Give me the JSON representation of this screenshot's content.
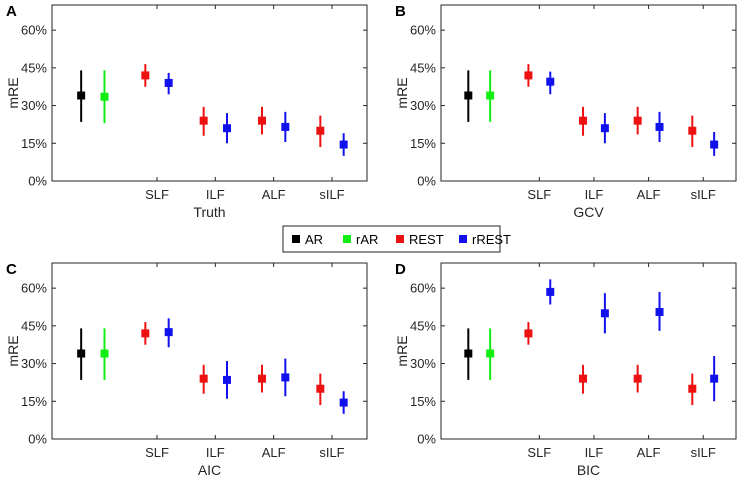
{
  "chart_data": [
    {
      "panel": "A",
      "type": "errorbar",
      "xlabel": "Truth",
      "ylabel": "mRE",
      "ylim": [
        0,
        0.7
      ],
      "yticks": [
        0,
        0.15,
        0.3,
        0.45,
        0.6
      ],
      "ytick_labels": [
        "0%",
        "15%",
        "30%",
        "45%",
        "60%"
      ],
      "categories": [
        "SLF",
        "ILF",
        "ALF",
        "sILF"
      ],
      "series": [
        {
          "name": "AR",
          "color": "#000000",
          "points": [
            {
              "x": -2.4,
              "mean": 0.34,
              "lo": 0.235,
              "hi": 0.44
            }
          ]
        },
        {
          "name": "rAR",
          "color": "#11ee11",
          "points": [
            {
              "x": -1.6,
              "mean": 0.335,
              "lo": 0.23,
              "hi": 0.44
            }
          ]
        },
        {
          "name": "REST",
          "color": "#ee1111",
          "points": [
            {
              "x": -0.2,
              "mean": 0.42,
              "lo": 0.375,
              "hi": 0.465
            },
            {
              "x": 1.8,
              "mean": 0.24,
              "lo": 0.18,
              "hi": 0.295
            },
            {
              "x": 3.8,
              "mean": 0.24,
              "lo": 0.185,
              "hi": 0.295
            },
            {
              "x": 5.8,
              "mean": 0.2,
              "lo": 0.135,
              "hi": 0.26
            }
          ]
        },
        {
          "name": "rREST",
          "color": "#1111ee",
          "points": [
            {
              "x": 0.6,
              "mean": 0.39,
              "lo": 0.345,
              "hi": 0.43
            },
            {
              "x": 2.6,
              "mean": 0.21,
              "lo": 0.15,
              "hi": 0.27
            },
            {
              "x": 4.6,
              "mean": 0.215,
              "lo": 0.155,
              "hi": 0.275
            },
            {
              "x": 6.6,
              "mean": 0.145,
              "lo": 0.1,
              "hi": 0.19
            }
          ]
        }
      ]
    },
    {
      "panel": "B",
      "type": "errorbar",
      "xlabel": "GCV",
      "ylabel": "mRE",
      "ylim": [
        0,
        0.7
      ],
      "yticks": [
        0,
        0.15,
        0.3,
        0.45,
        0.6
      ],
      "ytick_labels": [
        "0%",
        "15%",
        "30%",
        "45%",
        "60%"
      ],
      "categories": [
        "SLF",
        "ILF",
        "ALF",
        "sILF"
      ],
      "series": [
        {
          "name": "AR",
          "color": "#000000",
          "points": [
            {
              "x": -2.4,
              "mean": 0.34,
              "lo": 0.235,
              "hi": 0.44
            }
          ]
        },
        {
          "name": "rAR",
          "color": "#11ee11",
          "points": [
            {
              "x": -1.6,
              "mean": 0.34,
              "lo": 0.235,
              "hi": 0.44
            }
          ]
        },
        {
          "name": "REST",
          "color": "#ee1111",
          "points": [
            {
              "x": -0.2,
              "mean": 0.42,
              "lo": 0.375,
              "hi": 0.465
            },
            {
              "x": 1.8,
              "mean": 0.24,
              "lo": 0.18,
              "hi": 0.295
            },
            {
              "x": 3.8,
              "mean": 0.24,
              "lo": 0.185,
              "hi": 0.295
            },
            {
              "x": 5.8,
              "mean": 0.2,
              "lo": 0.135,
              "hi": 0.26
            }
          ]
        },
        {
          "name": "rREST",
          "color": "#1111ee",
          "points": [
            {
              "x": 0.6,
              "mean": 0.395,
              "lo": 0.345,
              "hi": 0.435
            },
            {
              "x": 2.6,
              "mean": 0.21,
              "lo": 0.15,
              "hi": 0.27
            },
            {
              "x": 4.6,
              "mean": 0.215,
              "lo": 0.155,
              "hi": 0.275
            },
            {
              "x": 6.6,
              "mean": 0.145,
              "lo": 0.1,
              "hi": 0.195
            }
          ]
        }
      ]
    },
    {
      "panel": "C",
      "type": "errorbar",
      "xlabel": "AIC",
      "ylabel": "mRE",
      "ylim": [
        0,
        0.7
      ],
      "yticks": [
        0,
        0.15,
        0.3,
        0.45,
        0.6
      ],
      "ytick_labels": [
        "0%",
        "15%",
        "30%",
        "45%",
        "60%"
      ],
      "categories": [
        "SLF",
        "ILF",
        "ALF",
        "sILF"
      ],
      "series": [
        {
          "name": "AR",
          "color": "#000000",
          "points": [
            {
              "x": -2.4,
              "mean": 0.34,
              "lo": 0.235,
              "hi": 0.44
            }
          ]
        },
        {
          "name": "rAR",
          "color": "#11ee11",
          "points": [
            {
              "x": -1.6,
              "mean": 0.34,
              "lo": 0.235,
              "hi": 0.44
            }
          ]
        },
        {
          "name": "REST",
          "color": "#ee1111",
          "points": [
            {
              "x": -0.2,
              "mean": 0.42,
              "lo": 0.375,
              "hi": 0.465
            },
            {
              "x": 1.8,
              "mean": 0.24,
              "lo": 0.18,
              "hi": 0.295
            },
            {
              "x": 3.8,
              "mean": 0.24,
              "lo": 0.185,
              "hi": 0.295
            },
            {
              "x": 5.8,
              "mean": 0.2,
              "lo": 0.135,
              "hi": 0.26
            }
          ]
        },
        {
          "name": "rREST",
          "color": "#1111ee",
          "points": [
            {
              "x": 0.6,
              "mean": 0.425,
              "lo": 0.365,
              "hi": 0.48
            },
            {
              "x": 2.6,
              "mean": 0.235,
              "lo": 0.16,
              "hi": 0.31
            },
            {
              "x": 4.6,
              "mean": 0.245,
              "lo": 0.17,
              "hi": 0.32
            },
            {
              "x": 6.6,
              "mean": 0.145,
              "lo": 0.1,
              "hi": 0.19
            }
          ]
        }
      ]
    },
    {
      "panel": "D",
      "type": "errorbar",
      "xlabel": "BIC",
      "ylabel": "mRE",
      "ylim": [
        0,
        0.7
      ],
      "yticks": [
        0,
        0.15,
        0.3,
        0.45,
        0.6
      ],
      "ytick_labels": [
        "0%",
        "15%",
        "30%",
        "45%",
        "60%"
      ],
      "categories": [
        "SLF",
        "ILF",
        "ALF",
        "sILF"
      ],
      "series": [
        {
          "name": "AR",
          "color": "#000000",
          "points": [
            {
              "x": -2.4,
              "mean": 0.34,
              "lo": 0.235,
              "hi": 0.44
            }
          ]
        },
        {
          "name": "rAR",
          "color": "#11ee11",
          "points": [
            {
              "x": -1.6,
              "mean": 0.34,
              "lo": 0.235,
              "hi": 0.44
            }
          ]
        },
        {
          "name": "REST",
          "color": "#ee1111",
          "points": [
            {
              "x": -0.2,
              "mean": 0.42,
              "lo": 0.375,
              "hi": 0.465
            },
            {
              "x": 1.8,
              "mean": 0.24,
              "lo": 0.18,
              "hi": 0.295
            },
            {
              "x": 3.8,
              "mean": 0.24,
              "lo": 0.185,
              "hi": 0.295
            },
            {
              "x": 5.8,
              "mean": 0.2,
              "lo": 0.135,
              "hi": 0.26
            }
          ]
        },
        {
          "name": "rREST",
          "color": "#1111ee",
          "points": [
            {
              "x": 0.6,
              "mean": 0.585,
              "lo": 0.535,
              "hi": 0.635
            },
            {
              "x": 2.6,
              "mean": 0.5,
              "lo": 0.42,
              "hi": 0.58
            },
            {
              "x": 4.6,
              "mean": 0.505,
              "lo": 0.43,
              "hi": 0.585
            },
            {
              "x": 6.6,
              "mean": 0.24,
              "lo": 0.15,
              "hi": 0.33
            }
          ]
        }
      ]
    }
  ],
  "legend": {
    "position": "center",
    "entries": [
      {
        "label": "AR",
        "color": "#000000"
      },
      {
        "label": "rAR",
        "color": "#11ee11"
      },
      {
        "label": "REST",
        "color": "#ee1111"
      },
      {
        "label": "rREST",
        "color": "#1111ee"
      }
    ]
  }
}
